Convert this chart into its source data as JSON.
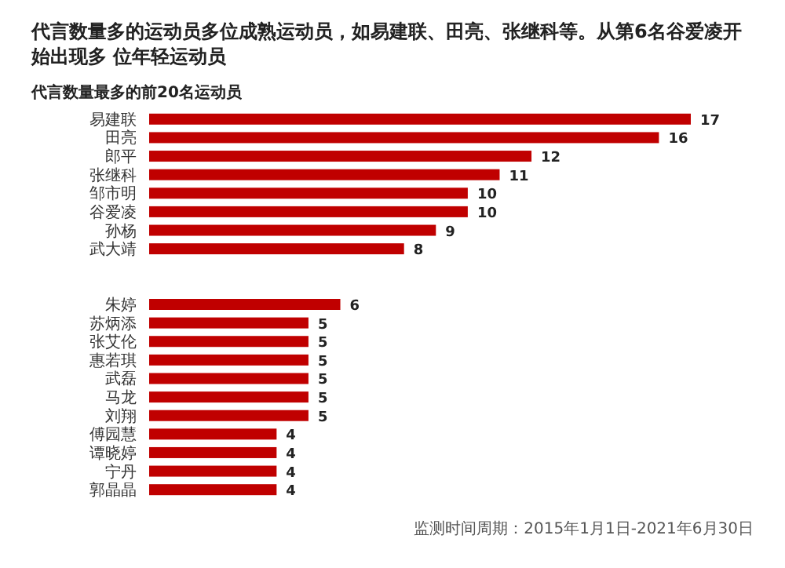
{
  "chart_data": {
    "type": "bar",
    "orientation": "horizontal",
    "title": "代言数量多的运动员多位成熟运动员，如易建联、田亮、张继科等。从第6名谷爱凌开始出现多 位年轻运动员",
    "subtitle": "代言数量最多的前20名运动员",
    "categories": [
      "易建联",
      "田亮",
      "郎平",
      "张继科",
      "邹市明",
      "谷爱凌",
      "孙杨",
      "武大靖",
      null,
      null,
      "朱婷",
      "苏炳添",
      "张艾伦",
      "惠若琪",
      "武磊",
      "马龙",
      "刘翔",
      "傅园慧",
      "谭晓婷",
      "宁丹",
      "郭晶晶"
    ],
    "values": [
      17,
      16,
      12,
      11,
      10,
      10,
      9,
      8,
      null,
      null,
      6,
      5,
      5,
      5,
      5,
      5,
      5,
      4,
      4,
      4,
      4
    ],
    "color": "#c00000",
    "data_labels": true,
    "annotations": [
      "监测时间周期：2015年1月1日-2021年6月30日"
    ]
  }
}
